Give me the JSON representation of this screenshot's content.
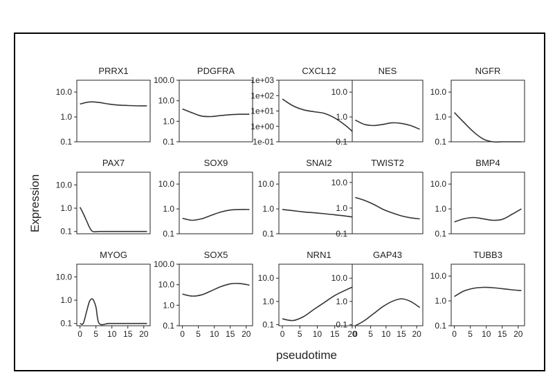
{
  "chart_data": {
    "type": "line",
    "xlabel": "pseudotime",
    "ylabel": "Expression",
    "x_ticks": [
      0,
      5,
      10,
      15,
      20
    ],
    "x_tick_labels": [
      "0",
      "5",
      "10",
      "15",
      "20"
    ],
    "xlim": [
      -1,
      22
    ],
    "y_scale": "log10",
    "grid": false,
    "panels": [
      {
        "name": "PRRX1",
        "ylim": [
          0.1,
          30
        ],
        "yticks": [
          0.1,
          1,
          10
        ],
        "ytick_labels": [
          "0.1",
          "1.0",
          "10.0"
        ],
        "x": [
          0,
          3,
          6,
          9,
          12,
          15,
          18,
          21
        ],
        "y": [
          3.3,
          4.0,
          3.8,
          3.3,
          3.0,
          2.9,
          2.8,
          2.8
        ]
      },
      {
        "name": "PDGFRA",
        "ylim": [
          0.1,
          100
        ],
        "yticks": [
          0.1,
          1,
          10,
          100
        ],
        "ytick_labels": [
          "0.1",
          "1.0",
          "10.0",
          "100.0"
        ],
        "x": [
          0,
          3,
          6,
          9,
          12,
          15,
          18,
          21
        ],
        "y": [
          4.0,
          2.6,
          1.8,
          1.7,
          1.9,
          2.1,
          2.2,
          2.2
        ]
      },
      {
        "name": "CXCL12",
        "ylim": [
          0.1,
          1000
        ],
        "yticks": [
          0.1,
          1,
          10,
          100,
          1000
        ],
        "ytick_labels": [
          "1e-01",
          "1e+00",
          "1e+01",
          "1e+02",
          "1e+03"
        ],
        "x": [
          0,
          3,
          6,
          9,
          12,
          15,
          18,
          21
        ],
        "y": [
          60,
          22,
          12,
          9,
          7,
          3.5,
          1.2,
          0.3
        ]
      },
      {
        "name": "NES",
        "ylim": [
          0.1,
          30
        ],
        "yticks": [
          0.1,
          1,
          10
        ],
        "ytick_labels": [
          "0.1",
          "1.0",
          "10.0"
        ],
        "x": [
          0,
          3,
          6,
          9,
          12,
          15,
          18,
          21
        ],
        "y": [
          0.75,
          0.5,
          0.45,
          0.5,
          0.58,
          0.55,
          0.45,
          0.32
        ]
      },
      {
        "name": "NGFR",
        "ylim": [
          0.1,
          30
        ],
        "yticks": [
          0.1,
          1,
          10
        ],
        "ytick_labels": [
          "0.1",
          "1.0",
          "10.0"
        ],
        "x": [
          0,
          3,
          6,
          9,
          12,
          15,
          18,
          21
        ],
        "y": [
          1.5,
          0.6,
          0.25,
          0.13,
          0.1,
          0.1,
          0.1,
          0.1
        ]
      },
      {
        "name": "PAX7",
        "ylim": [
          0.08,
          35
        ],
        "yticks": [
          0.1,
          1,
          10
        ],
        "ytick_labels": [
          "0.1",
          "1.0",
          "10.0"
        ],
        "x": [
          0,
          1,
          2,
          3,
          4,
          6,
          9,
          12,
          15,
          18,
          21
        ],
        "y": [
          1.1,
          0.6,
          0.3,
          0.15,
          0.1,
          0.1,
          0.1,
          0.1,
          0.1,
          0.1,
          0.1
        ]
      },
      {
        "name": "SOX9",
        "ylim": [
          0.1,
          30
        ],
        "yticks": [
          0.1,
          1,
          10
        ],
        "ytick_labels": [
          "0.1",
          "1.0",
          "10.0"
        ],
        "x": [
          0,
          3,
          6,
          9,
          12,
          15,
          18,
          21
        ],
        "y": [
          0.42,
          0.35,
          0.4,
          0.55,
          0.75,
          0.9,
          0.95,
          0.95
        ]
      },
      {
        "name": "SNAI2",
        "ylim": [
          0.1,
          30
        ],
        "yticks": [
          0.1,
          1,
          10
        ],
        "ytick_labels": [
          "0.1",
          "1.0",
          "10.0"
        ],
        "x": [
          0,
          3,
          6,
          9,
          12,
          15,
          18,
          21
        ],
        "y": [
          0.95,
          0.85,
          0.76,
          0.7,
          0.64,
          0.58,
          0.52,
          0.45
        ]
      },
      {
        "name": "TWIST2",
        "ylim": [
          0.1,
          25
        ],
        "yticks": [
          0.1,
          1,
          10
        ],
        "ytick_labels": [
          "0.1",
          "1.0",
          "10.0"
        ],
        "x": [
          0,
          3,
          6,
          9,
          12,
          15,
          18,
          21
        ],
        "y": [
          2.6,
          2.0,
          1.4,
          0.9,
          0.65,
          0.5,
          0.42,
          0.38
        ]
      },
      {
        "name": "BMP4",
        "ylim": [
          0.1,
          30
        ],
        "yticks": [
          0.1,
          1,
          10
        ],
        "ytick_labels": [
          "0.1",
          "1.0",
          "10.0"
        ],
        "x": [
          0,
          3,
          6,
          9,
          12,
          15,
          18,
          21
        ],
        "y": [
          0.3,
          0.4,
          0.45,
          0.4,
          0.35,
          0.38,
          0.6,
          1.0
        ]
      },
      {
        "name": "MYOG",
        "ylim": [
          0.08,
          35
        ],
        "yticks": [
          0.1,
          1,
          10
        ],
        "ytick_labels": [
          "0.1",
          "1.0",
          "10.0"
        ],
        "x": [
          0,
          1,
          2,
          3,
          4,
          5,
          6,
          9,
          12,
          15,
          18,
          21
        ],
        "y": [
          0.1,
          0.1,
          0.3,
          0.9,
          1.1,
          0.5,
          0.1,
          0.1,
          0.1,
          0.1,
          0.1,
          0.1
        ]
      },
      {
        "name": "SOX5",
        "ylim": [
          0.1,
          100
        ],
        "yticks": [
          0.1,
          1,
          10,
          100
        ],
        "ytick_labels": [
          "0.1",
          "1.0",
          "10.0",
          "100.0"
        ],
        "x": [
          0,
          3,
          6,
          9,
          12,
          15,
          18,
          21
        ],
        "y": [
          3.5,
          2.8,
          3.2,
          5.0,
          8.0,
          11.0,
          11.5,
          9.5
        ]
      },
      {
        "name": "NRN1",
        "ylim": [
          0.09,
          40
        ],
        "yticks": [
          0.1,
          1,
          10
        ],
        "ytick_labels": [
          "0.1",
          "1.0",
          "10.0"
        ],
        "x": [
          0,
          3,
          6,
          9,
          12,
          15,
          18,
          21
        ],
        "y": [
          0.18,
          0.15,
          0.22,
          0.45,
          0.9,
          1.8,
          3.0,
          4.8
        ]
      },
      {
        "name": "GAP43",
        "ylim": [
          0.09,
          40
        ],
        "yticks": [
          0.1,
          1,
          10
        ],
        "ytick_labels": [
          "0.1",
          "1.0",
          "10.0"
        ],
        "x": [
          0,
          3,
          6,
          9,
          12,
          15,
          18,
          21
        ],
        "y": [
          0.09,
          0.15,
          0.3,
          0.6,
          1.0,
          1.3,
          1.0,
          0.55
        ]
      },
      {
        "name": "TUBB3",
        "ylim": [
          0.1,
          30
        ],
        "yticks": [
          0.1,
          1,
          10
        ],
        "ytick_labels": [
          "0.1",
          "1.0",
          "10.0"
        ],
        "x": [
          0,
          3,
          6,
          9,
          12,
          15,
          18,
          21
        ],
        "y": [
          1.5,
          2.5,
          3.2,
          3.5,
          3.4,
          3.1,
          2.8,
          2.6
        ]
      }
    ]
  }
}
